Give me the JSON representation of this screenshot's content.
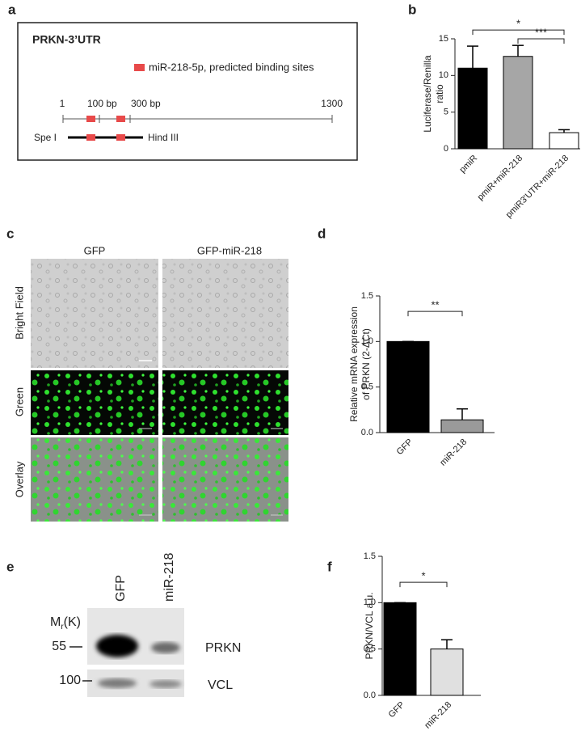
{
  "panel_a": {
    "label": "a",
    "title": "PRKN-3’UTR",
    "legend": "miR-218-5p, predicted binding sites",
    "scale_labels": [
      "1",
      "100 bp",
      "300 bp",
      "1300"
    ],
    "construct_left": "Spe I",
    "construct_right": "Hind III"
  },
  "chart_data": [
    {
      "type": "bar",
      "panel": "b",
      "ylabel": [
        "Luciferase/Renilla",
        "ratio"
      ],
      "categories": [
        "pmiR",
        "pmiR+miR-218",
        "pmiR3'UTR+miR-218"
      ],
      "values": [
        11.0,
        12.6,
        2.2
      ],
      "errors": [
        3.0,
        1.5,
        0.4
      ],
      "colors": [
        "#000000",
        "#a6a6a6",
        "#ffffff"
      ],
      "ylim": [
        0,
        15
      ],
      "yticks": [
        0,
        5,
        10,
        15
      ],
      "annotations": [
        {
          "label": "*",
          "from": "pmiR",
          "to": "pmiR3'UTR+miR-218",
          "y": 16.2
        },
        {
          "label": "***",
          "from": "pmiR+miR-218",
          "to": "pmiR3'UTR+miR-218",
          "y": 15.0
        }
      ]
    },
    {
      "type": "bar",
      "panel": "d",
      "ylabel": [
        "Relative mRNA expression",
        "of PRKN (2-ΔCt)"
      ],
      "categories": [
        "GFP",
        "miR-218"
      ],
      "values": [
        1.0,
        0.14
      ],
      "errors": [
        0,
        0.12
      ],
      "colors": [
        "#000000",
        "#9a9a9a"
      ],
      "ylim": [
        0,
        1.5
      ],
      "yticks": [
        {
          "value": 0,
          "label": "0.0"
        },
        0.5,
        {
          "value": 1,
          "label": "1.0"
        },
        1.5
      ],
      "annotations": [
        {
          "label": "**",
          "from": "GFP",
          "to": "miR-218",
          "y": 1.33
        }
      ]
    },
    {
      "type": "bar",
      "panel": "f",
      "ylabel": [
        "PRKN/VCL a.u."
      ],
      "categories": [
        "GFP",
        "miR-218"
      ],
      "values": [
        1.0,
        0.5
      ],
      "errors": [
        0,
        0.1
      ],
      "colors": [
        "#000000",
        "#e0e0e0"
      ],
      "ylim": [
        0,
        1.5
      ],
      "yticks": [
        {
          "value": 0,
          "label": "0.0"
        },
        0.5,
        {
          "value": 1,
          "label": "1.0"
        },
        1.5
      ],
      "annotations": [
        {
          "label": "*",
          "from": "GFP",
          "to": "miR-218",
          "y": 1.22
        }
      ]
    }
  ],
  "panel_c": {
    "label": "c",
    "columns": [
      "GFP",
      "GFP-miR-218"
    ],
    "rows": [
      "Bright Field",
      "Green",
      "Overlay"
    ]
  },
  "panel_e": {
    "label": "e",
    "marker_title": {
      "main": "M",
      "sub": "r",
      "unit": "(K)"
    },
    "lanes": [
      "GFP",
      "miR-218"
    ],
    "markers": [
      "55",
      "100"
    ],
    "bands": [
      "PRKN",
      "VCL"
    ]
  }
}
